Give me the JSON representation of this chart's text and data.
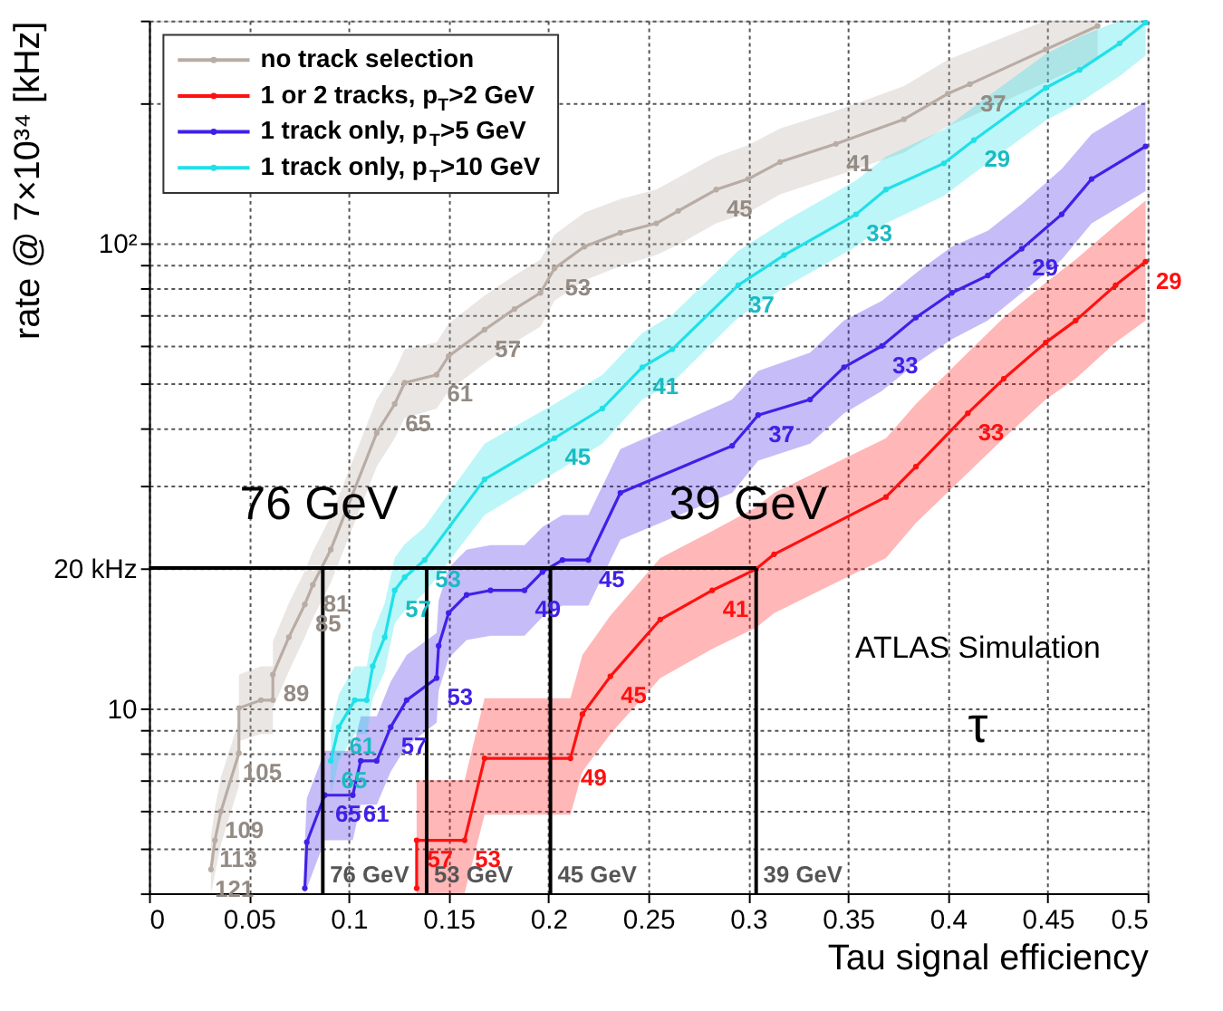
{
  "chart_data": {
    "type": "line",
    "xlabel": "Tau signal efficiency",
    "ylabel": "rate @ 7×10³⁴ [kHz]",
    "log": "y",
    "grid": true,
    "legend": "top left",
    "marker": "circle",
    "line_style": "solid",
    "xlim": [
      0,
      0.5
    ],
    "xticks": [
      0,
      0.05,
      0.1,
      0.15,
      0.2,
      0.25,
      0.3,
      0.35,
      0.4,
      0.45,
      0.5
    ],
    "ylim": [
      4,
      300
    ],
    "yticks": [
      {
        "value": 4,
        "label": null
      },
      {
        "value": 5,
        "label": null
      },
      {
        "value": 6,
        "label": null
      },
      {
        "value": 7,
        "label": null
      },
      {
        "value": 8,
        "label": null
      },
      {
        "value": 9,
        "label": null
      },
      10,
      {
        "value": 20,
        "label": "20 kHz"
      },
      {
        "value": 30,
        "label": null
      },
      {
        "value": 40,
        "label": null
      },
      {
        "value": 50,
        "label": null
      },
      {
        "value": 60,
        "label": null
      },
      {
        "value": 70,
        "label": null
      },
      {
        "value": 80,
        "label": null
      },
      {
        "value": 90,
        "label": null
      },
      {
        "value": 100,
        "label": "10²"
      },
      {
        "value": 200,
        "label": null
      },
      {
        "value": 300,
        "label": null
      }
    ],
    "series": [
      {
        "name": "no track selection",
        "color": "#b8aca4",
        "x": [
          0.031,
          0.033,
          0.036,
          0.045,
          0.045,
          0.056,
          0.062,
          0.062,
          0.07,
          0.078,
          0.082,
          0.091,
          0.114,
          0.123,
          0.128,
          0.144,
          0.15,
          0.168,
          0.183,
          0.196,
          0.203,
          0.218,
          0.236,
          0.254,
          0.265,
          0.284,
          0.3,
          0.316,
          0.344,
          0.378,
          0.4,
          0.411,
          0.449,
          0.475
        ],
        "values": [
          4.5,
          5.2,
          6.0,
          8.0,
          10,
          10.4,
          10.4,
          11.8,
          14.2,
          16.7,
          18.4,
          21.9,
          39,
          45,
          50,
          52,
          57,
          65,
          72,
          78,
          88,
          98,
          105,
          110,
          117,
          130,
          137,
          149,
          163,
          184,
          209,
          219,
          260,
          292
        ],
        "lower": [
          4,
          4.4,
          5.1,
          6.8,
          8.5,
          8.8,
          8.8,
          10,
          12,
          14.2,
          15.6,
          18.6,
          33,
          38,
          42,
          44,
          48,
          55,
          61,
          66,
          75,
          83,
          89,
          94,
          99,
          110,
          116,
          127,
          139,
          156,
          178,
          186,
          221,
          248
        ],
        "upper": [
          5.3,
          6.1,
          7.1,
          9.4,
          11.8,
          12.3,
          12.3,
          13.9,
          16.8,
          19.7,
          21.7,
          25.8,
          46,
          53,
          59,
          61,
          67,
          77,
          85,
          92,
          104,
          116,
          124,
          130,
          138,
          153,
          162,
          176,
          192,
          217,
          247,
          258,
          300,
          300
        ]
      },
      {
        "name": "1 or 2 tracks, p$_{T}$>2 GeV",
        "color": "#ff1010",
        "x": [
          0.134,
          0.134,
          0.158,
          0.168,
          0.211,
          0.217,
          0.231,
          0.256,
          0.282,
          0.304,
          0.313,
          0.369,
          0.384,
          0.41,
          0.428,
          0.449,
          0.464,
          0.484,
          0.499
        ],
        "values": [
          4.1,
          5.2,
          5.2,
          7.8,
          7.8,
          9.7,
          11.7,
          15.5,
          17.9,
          19.9,
          21.4,
          28.4,
          33,
          43,
          51,
          61,
          68,
          81,
          91
        ],
        "lower": [
          4,
          4,
          4,
          5.9,
          5.9,
          7.3,
          8.8,
          11.6,
          13.4,
          14.9,
          16,
          21,
          25,
          32,
          38,
          46,
          51,
          61,
          68
        ],
        "upper": [
          5.5,
          7,
          7,
          10.5,
          10.5,
          13,
          15.8,
          21,
          24,
          27,
          29,
          38,
          45,
          58,
          69,
          82,
          92,
          109,
          123
        ]
      },
      {
        "name": "1 track only,  p$_{T}$>5 GeV",
        "color": "#4020e8",
        "x": [
          0.078,
          0.079,
          0.088,
          0.102,
          0.106,
          0.114,
          0.121,
          0.129,
          0.144,
          0.145,
          0.15,
          0.159,
          0.171,
          0.188,
          0.197,
          0.207,
          0.22,
          0.236,
          0.292,
          0.305,
          0.331,
          0.348,
          0.367,
          0.384,
          0.402,
          0.42,
          0.437,
          0.457,
          0.472,
          0.499
        ],
        "values": [
          4.1,
          5.15,
          6.5,
          6.5,
          7.7,
          7.7,
          9.1,
          10.4,
          11.6,
          13.6,
          16,
          17.5,
          17.9,
          17.9,
          19.6,
          20.8,
          20.8,
          29,
          36.6,
          42.6,
          46,
          54,
          60,
          69,
          78,
          85,
          97,
          115,
          137,
          161
        ],
        "lower": [
          4,
          4.1,
          5.2,
          5.2,
          6.2,
          6.2,
          7.3,
          8.3,
          9.3,
          10.9,
          12.8,
          14,
          14.3,
          14.3,
          15.7,
          16.6,
          16.6,
          23,
          29,
          34,
          37,
          43,
          48,
          55,
          62,
          68,
          78,
          92,
          110,
          129
        ],
        "upper": [
          5.1,
          6.4,
          8.1,
          8.1,
          9.6,
          9.6,
          11.4,
          13,
          14.5,
          17,
          20,
          21.9,
          22.4,
          22.4,
          24.5,
          26,
          26,
          36,
          46,
          53,
          58,
          68,
          75,
          86,
          98,
          106,
          121,
          144,
          171,
          201
        ]
      },
      {
        "name": "1 track only,  p$_{T}$>10 GeV",
        "color": "#20e0e8",
        "x": [
          0.091,
          0.095,
          0.103,
          0.109,
          0.112,
          0.118,
          0.123,
          0.128,
          0.138,
          0.168,
          0.203,
          0.227,
          0.247,
          0.262,
          0.295,
          0.318,
          0.354,
          0.369,
          0.398,
          0.413,
          0.449,
          0.466,
          0.486,
          0.499
        ],
        "values": [
          7.7,
          9.1,
          10.4,
          10.4,
          12.3,
          14.2,
          17.9,
          19.1,
          20.8,
          31,
          38,
          44,
          54,
          59,
          81,
          94,
          115,
          130,
          148,
          166,
          215,
          235,
          268,
          297
        ],
        "lower": [
          6.5,
          7.7,
          8.8,
          8.8,
          10.5,
          12,
          15.2,
          16.2,
          17.7,
          26,
          32,
          37,
          46,
          50,
          69,
          80,
          98,
          110,
          126,
          141,
          183,
          200,
          228,
          252
        ],
        "upper": [
          9.1,
          10.7,
          12.3,
          12.3,
          14.5,
          16.8,
          21,
          22.5,
          24.5,
          37,
          45,
          52,
          64,
          70,
          96,
          111,
          136,
          153,
          175,
          196,
          254,
          277,
          300,
          300
        ]
      }
    ],
    "ref_lines": [
      {
        "axis": "y",
        "value": 20,
        "label": null,
        "color": "#000000"
      },
      {
        "axis": "x",
        "value": 0.087,
        "label": "76 GeV",
        "color": "#000000"
      },
      {
        "axis": "x",
        "value": 0.139,
        "label": "53 GeV",
        "color": "#000000"
      },
      {
        "axis": "x",
        "value": 0.201,
        "label": "45 GeV",
        "color": "#000000"
      },
      {
        "axis": "x",
        "value": 0.304,
        "label": "39 GeV",
        "color": "#000000"
      }
    ],
    "annotations": [
      "76 GeV",
      "39 GeV",
      "ATLAS Simulation",
      "τ",
      {
        "text": "121",
        "x": 0.031,
        "y": 4.5
      },
      {
        "text": "113",
        "x": 0.033,
        "y": 5.2
      },
      {
        "text": "109",
        "x": 0.036,
        "y": 6.0
      },
      {
        "text": "105",
        "x": 0.045,
        "y": 8.0
      },
      {
        "text": "89",
        "x": 0.062,
        "y": 11.8
      },
      {
        "text": "85",
        "x": 0.078,
        "y": 16.7
      },
      {
        "text": "81",
        "x": 0.082,
        "y": 18.4
      },
      {
        "text": "65",
        "x": 0.123,
        "y": 45
      },
      {
        "text": "61",
        "x": 0.144,
        "y": 52
      },
      {
        "text": "57",
        "x": 0.168,
        "y": 65
      },
      {
        "text": "53",
        "x": 0.203,
        "y": 88
      },
      {
        "text": "45",
        "x": 0.284,
        "y": 130
      },
      {
        "text": "41",
        "x": 0.344,
        "y": 163
      },
      {
        "text": "37",
        "x": 0.411,
        "y": 219
      },
      {
        "text": "57",
        "x": 0.134,
        "y": 5.2
      },
      {
        "text": "53",
        "x": 0.158,
        "y": 5.2
      },
      {
        "text": "49",
        "x": 0.211,
        "y": 7.8
      },
      {
        "text": "45",
        "x": 0.231,
        "y": 11.7
      },
      {
        "text": "41",
        "x": 0.282,
        "y": 17.9
      },
      {
        "text": "33",
        "x": 0.41,
        "y": 43
      },
      {
        "text": "29",
        "x": 0.499,
        "y": 91
      },
      {
        "text": "65",
        "x": 0.088,
        "y": 6.5
      },
      {
        "text": "61",
        "x": 0.102,
        "y": 6.5
      },
      {
        "text": "57",
        "x": 0.121,
        "y": 9.1
      },
      {
        "text": "53",
        "x": 0.144,
        "y": 11.6
      },
      {
        "text": "49",
        "x": 0.188,
        "y": 17.9
      },
      {
        "text": "45",
        "x": 0.22,
        "y": 20.8
      },
      {
        "text": "37",
        "x": 0.305,
        "y": 42.6
      },
      {
        "text": "33",
        "x": 0.367,
        "y": 60
      },
      {
        "text": "29",
        "x": 0.437,
        "y": 97
      },
      {
        "text": "65",
        "x": 0.091,
        "y": 7.7
      },
      {
        "text": "61",
        "x": 0.095,
        "y": 9.1
      },
      {
        "text": "57",
        "x": 0.123,
        "y": 17.9
      },
      {
        "text": "53",
        "x": 0.138,
        "y": 20.8
      },
      {
        "text": "45",
        "x": 0.203,
        "y": 38
      },
      {
        "text": "41",
        "x": 0.247,
        "y": 54
      },
      {
        "text": "37",
        "x": 0.295,
        "y": 81
      },
      {
        "text": "33",
        "x": 0.354,
        "y": 115
      },
      {
        "text": "29",
        "x": 0.413,
        "y": 166
      }
    ]
  }
}
